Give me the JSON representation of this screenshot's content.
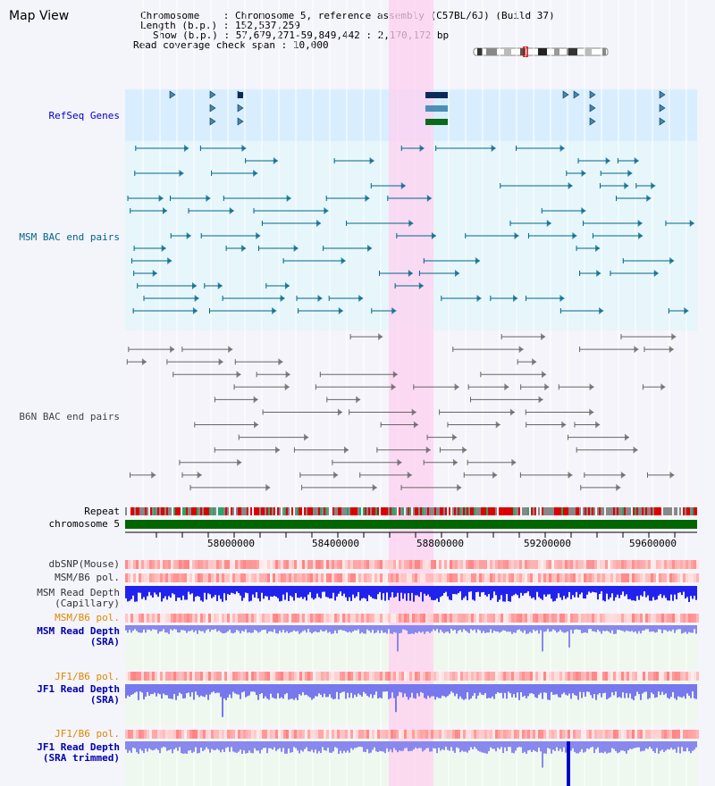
{
  "page": {
    "title": "Map View"
  },
  "info": {
    "chromosome_key": "Chromosome",
    "chromosome_val": "Chromosome 5, reference assembly (C57BL/6J) (Build 37)",
    "length_key": "Length (b.p.)",
    "length_val": "152,537,259",
    "show_key": "Show (b.p.)",
    "show_val": "57,679,271-59,849,442 : 2,170,172 bp",
    "coverage_key": "Read coverage check span",
    "coverage_val": "10,000"
  },
  "tracks": {
    "refseq": "RefSeq Genes",
    "msm_bac": "MSM BAC end pairs",
    "b6n_bac": "B6N BAC end pairs",
    "repeat": "Repeat",
    "chromosome": "chromosome 5",
    "dbsnp": "dbSNP(Mouse)",
    "msm_b6_pol_1": "MSM/B6 pol.",
    "msm_depth_cap_1": "MSM Read Depth",
    "msm_depth_cap_2": "(Capillary)",
    "msm_b6_pol_2": "MSM/B6 pol.",
    "msm_depth_sra_1": "MSM Read Depth",
    "msm_depth_sra_2": "(SRA)",
    "jf1_b6_pol_1": "JF1/B6 pol.",
    "jf1_depth_sra_1": "JF1 Read Depth",
    "jf1_depth_sra_2": "(SRA)",
    "jf1_b6_pol_2": "JF1/B6 pol.",
    "jf1_depth_trim_1": "JF1 Read Depth",
    "jf1_depth_trim_2": "(SRA trimmed)"
  },
  "ruler": {
    "ticks": [
      "58000000",
      "58400000",
      "58800000",
      "59200000",
      "59600000"
    ]
  },
  "colors": {
    "refseq": "#0000cc",
    "msm": "#006688",
    "b6n": "#444444",
    "orange": "#dd8800",
    "blue": "#0000aa",
    "highlight": "#ffd0f0"
  }
}
